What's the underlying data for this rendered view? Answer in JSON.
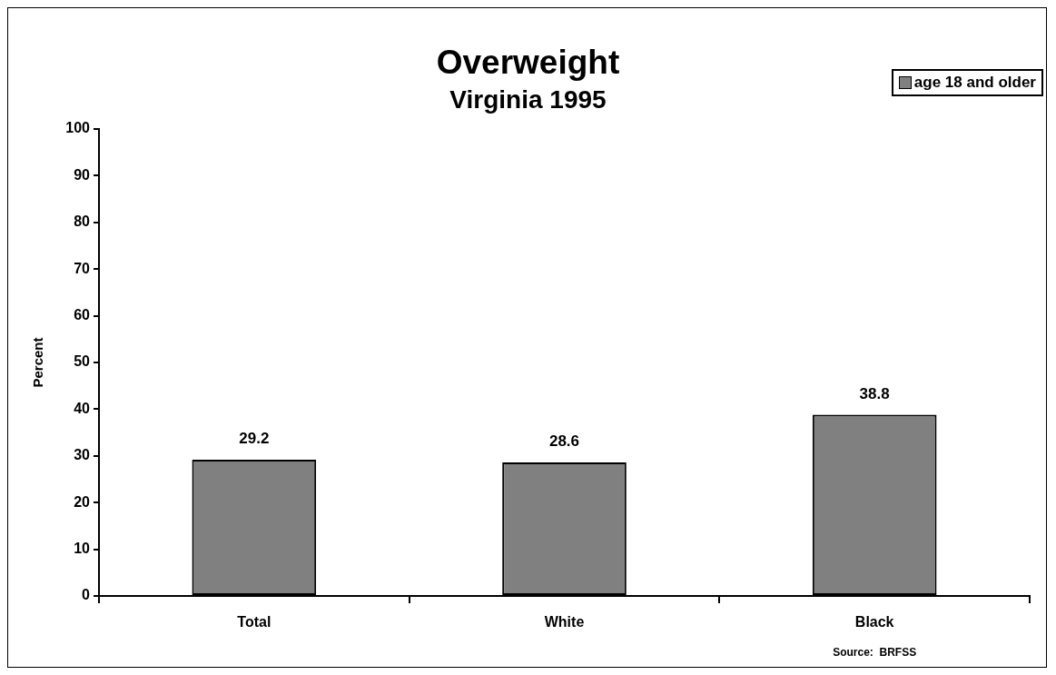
{
  "chart_data": {
    "type": "bar",
    "title": "Overweight",
    "subtitle": "Virginia 1995",
    "ylabel": "Percent",
    "categories": [
      "Total",
      "White",
      "Black"
    ],
    "series": [
      {
        "name": "age 18 and older",
        "color": "#808080",
        "values": [
          29.2,
          28.6,
          38.8
        ]
      }
    ],
    "ylim": [
      0,
      100
    ],
    "yticks": [
      0,
      10,
      20,
      30,
      40,
      50,
      60,
      70,
      80,
      90,
      100
    ],
    "grid": false,
    "legend": "top right",
    "data_labels": true,
    "annotations": [
      "Source:  BRFSS"
    ]
  }
}
